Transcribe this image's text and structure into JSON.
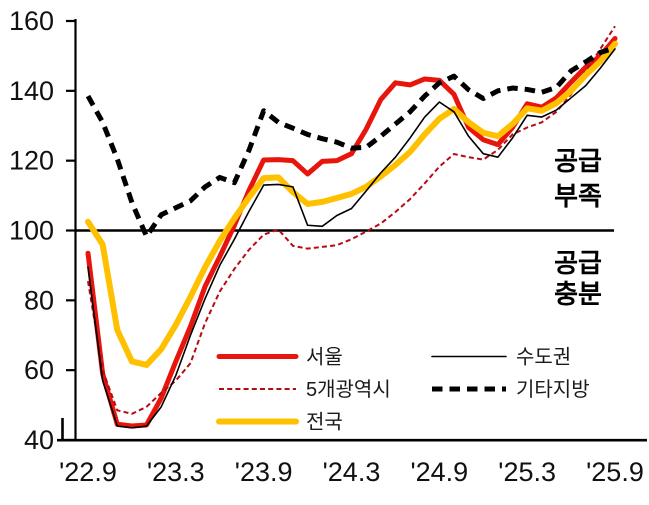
{
  "chart_data": {
    "type": "line",
    "title": "",
    "x_tick_labels": [
      "'22.9",
      "'23.3",
      "'23.9",
      "'24.3",
      "'24.9",
      "'25.3",
      "'25.9"
    ],
    "x_months_total": 36,
    "ylim": [
      40,
      160
    ],
    "yticks": [
      40,
      60,
      80,
      100,
      120,
      140,
      160
    ],
    "reference_line": 100,
    "grid": false,
    "legend_position": "inside-bottom",
    "series": [
      {
        "name": "서울",
        "color": "#e8150d",
        "width": 5,
        "dash": null,
        "values": [
          93.5,
          59,
          44.5,
          44,
          44.3,
          52,
          62.5,
          72.5,
          84,
          92.5,
          101.5,
          111.5,
          120.2,
          120.3,
          120,
          116.2,
          119.8,
          120,
          122,
          129,
          137.5,
          142.3,
          141.7,
          143.4,
          143,
          139,
          129.5,
          126,
          124.6,
          129.5,
          136.3,
          135.3,
          138,
          142.5,
          146.8,
          150,
          155
        ]
      },
      {
        "name": "5개광역시",
        "color": "#b50b14",
        "width": 2,
        "dash": [
          5,
          3.2
        ],
        "values": [
          85.5,
          60,
          48.5,
          47.5,
          49.5,
          53.5,
          57,
          62,
          73.5,
          82.5,
          89,
          94.5,
          98.8,
          100.3,
          95.6,
          94.8,
          95.3,
          95.8,
          97.5,
          99.7,
          102,
          105.3,
          109,
          113.5,
          118.3,
          121.9,
          121,
          120.3,
          123.1,
          127.5,
          129.5,
          131,
          134,
          139,
          145.5,
          152,
          158.5
        ]
      },
      {
        "name": "전국",
        "color": "#ffc000",
        "width": 6,
        "dash": null,
        "values": [
          102.5,
          96,
          71.5,
          62.5,
          61.5,
          66,
          73,
          81,
          89.5,
          97,
          103.5,
          109.5,
          115,
          115.2,
          111,
          107.6,
          108.2,
          109.3,
          110.5,
          112.5,
          115.5,
          118.8,
          122.5,
          127.5,
          132,
          134.8,
          131,
          128,
          127,
          130.5,
          135,
          134.3,
          136.5,
          140,
          144.5,
          148.5,
          153.5
        ]
      },
      {
        "name": "수도권",
        "color": "#000000",
        "width": 1.6,
        "dash": null,
        "values": [
          89.5,
          57,
          44,
          43.5,
          44,
          49.5,
          58.5,
          70,
          80.5,
          90,
          97.5,
          105.5,
          113,
          113.2,
          112.5,
          101.5,
          101.2,
          104.3,
          106.3,
          111.3,
          116.5,
          121,
          126.5,
          132.5,
          136.8,
          134,
          127,
          122,
          121,
          126.5,
          133,
          132.5,
          134.5,
          138,
          141.5,
          146.5,
          152
        ]
      },
      {
        "name": "기타지방",
        "color": "#000000",
        "width": 5,
        "dash": [
          10.5,
          7
        ],
        "values": [
          138.5,
          131,
          120.5,
          108,
          98.3,
          104.5,
          106.5,
          108.5,
          112.5,
          115.2,
          113.7,
          123,
          134.3,
          131,
          129.3,
          127.5,
          126.3,
          125.3,
          123.6,
          123.8,
          127,
          130.5,
          134,
          138.5,
          142.3,
          144.2,
          140.3,
          137.8,
          140,
          140.8,
          140.4,
          139.6,
          141,
          145.7,
          148.3,
          151,
          152.3
        ]
      }
    ],
    "annotations": [
      {
        "id": "supply-short",
        "lines": [
          "공급",
          "부족"
        ]
      },
      {
        "id": "supply-enough",
        "lines": [
          "공급",
          "충분"
        ]
      }
    ]
  }
}
